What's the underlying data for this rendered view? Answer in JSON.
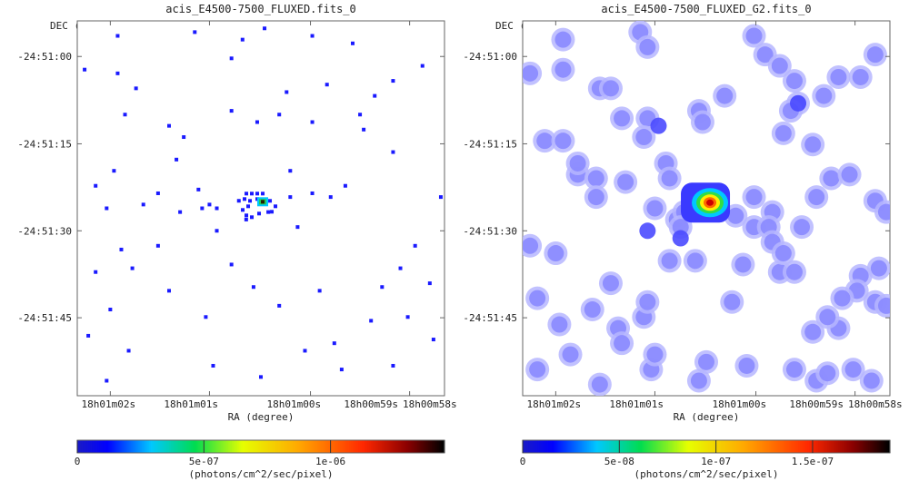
{
  "chart_data": [
    {
      "type": "heatmap",
      "title": "acis_E4500-7500_FLUXED.fits_0",
      "xlabel": "RA (degree)",
      "ylabel": "DEC (degree)",
      "x_ticks": [
        "18h01m02s",
        "18h01m01s",
        "18h01m00s",
        "18h00m59s",
        "18h00m58s"
      ],
      "y_ticks": [
        "-24:51:00",
        "-24:51:15",
        "-24:51:30",
        "-24:51:45"
      ],
      "colorbar": {
        "label": "(photons/cm^2/sec/pixel)",
        "ticks": [
          "0",
          "5e-07",
          "1e-06"
        ],
        "tick_values": [
          0,
          5e-07,
          1e-06
        ],
        "range": [
          0,
          1.45e-06
        ],
        "colormap": "rainbow"
      },
      "bright_source": {
        "ra_frac": 0.505,
        "dec_frac": 0.485
      },
      "events": [
        [
          0.02,
          0.13
        ],
        [
          0.11,
          0.04
        ],
        [
          0.11,
          0.14
        ],
        [
          0.16,
          0.18
        ],
        [
          0.32,
          0.03
        ],
        [
          0.51,
          0.02
        ],
        [
          0.64,
          0.04
        ],
        [
          0.75,
          0.06
        ],
        [
          0.42,
          0.24
        ],
        [
          0.49,
          0.27
        ],
        [
          0.55,
          0.25
        ],
        [
          0.22,
          0.46
        ],
        [
          0.28,
          0.51
        ],
        [
          0.34,
          0.5
        ],
        [
          0.36,
          0.49
        ],
        [
          0.38,
          0.5
        ],
        [
          0.44,
          0.48
        ],
        [
          0.46,
          0.53
        ],
        [
          0.52,
          0.51
        ],
        [
          0.58,
          0.47
        ],
        [
          0.64,
          0.46
        ],
        [
          0.69,
          0.47
        ],
        [
          0.73,
          0.44
        ],
        [
          0.05,
          0.44
        ],
        [
          0.1,
          0.4
        ],
        [
          0.05,
          0.67
        ],
        [
          0.03,
          0.84
        ],
        [
          0.08,
          0.96
        ],
        [
          0.14,
          0.88
        ],
        [
          0.25,
          0.72
        ],
        [
          0.35,
          0.79
        ],
        [
          0.37,
          0.92
        ],
        [
          0.5,
          0.95
        ],
        [
          0.62,
          0.88
        ],
        [
          0.72,
          0.93
        ],
        [
          0.86,
          0.92
        ],
        [
          0.9,
          0.79
        ],
        [
          0.92,
          0.6
        ],
        [
          0.96,
          0.7
        ],
        [
          0.99,
          0.47
        ],
        [
          0.94,
          0.12
        ],
        [
          0.86,
          0.16
        ],
        [
          0.78,
          0.29
        ],
        [
          0.81,
          0.2
        ],
        [
          0.77,
          0.25
        ],
        [
          0.42,
          0.1
        ],
        [
          0.57,
          0.19
        ],
        [
          0.64,
          0.27
        ],
        [
          0.29,
          0.31
        ],
        [
          0.12,
          0.61
        ],
        [
          0.09,
          0.77
        ],
        [
          0.22,
          0.6
        ],
        [
          0.42,
          0.65
        ],
        [
          0.48,
          0.71
        ],
        [
          0.55,
          0.76
        ],
        [
          0.66,
          0.72
        ],
        [
          0.7,
          0.86
        ],
        [
          0.8,
          0.8
        ],
        [
          0.83,
          0.71
        ],
        [
          0.88,
          0.66
        ],
        [
          0.6,
          0.55
        ],
        [
          0.58,
          0.4
        ],
        [
          0.33,
          0.45
        ],
        [
          0.38,
          0.56
        ],
        [
          0.18,
          0.49
        ],
        [
          0.25,
          0.28
        ],
        [
          0.27,
          0.37
        ],
        [
          0.13,
          0.25
        ],
        [
          0.08,
          0.5
        ],
        [
          0.15,
          0.66
        ],
        [
          0.45,
          0.05
        ],
        [
          0.86,
          0.35
        ],
        [
          0.68,
          0.17
        ],
        [
          0.97,
          0.85
        ]
      ]
    },
    {
      "type": "heatmap",
      "title": "acis_E4500-7500_FLUXED_G2.fits_0",
      "xlabel": "RA (degree)",
      "ylabel": "DEC (degree)",
      "x_ticks": [
        "18h01m02s",
        "18h01m01s",
        "18h01m00s",
        "18h00m59s",
        "18h00m58s"
      ],
      "y_ticks": [
        "-24:51:00",
        "-24:51:15",
        "-24:51:30",
        "-24:51:45"
      ],
      "colorbar": {
        "label": "(photons/cm^2/sec/pixel)",
        "ticks": [
          "0",
          "5e-08",
          "1e-07",
          "1.5e-07"
        ],
        "tick_values": [
          0,
          5e-08,
          1e-07,
          1.5e-07
        ],
        "range": [
          0,
          1.9e-07
        ],
        "colormap": "rainbow"
      },
      "bright_source": {
        "ra_frac": 0.51,
        "dec_frac": 0.485
      },
      "blobs": [
        [
          0.11,
          0.05
        ],
        [
          0.32,
          0.03
        ],
        [
          0.34,
          0.07
        ],
        [
          0.02,
          0.14
        ],
        [
          0.11,
          0.13
        ],
        [
          0.21,
          0.18
        ],
        [
          0.24,
          0.18
        ],
        [
          0.27,
          0.26
        ],
        [
          0.34,
          0.26
        ],
        [
          0.33,
          0.31
        ],
        [
          0.48,
          0.24
        ],
        [
          0.49,
          0.27
        ],
        [
          0.55,
          0.2
        ],
        [
          0.63,
          0.04
        ],
        [
          0.66,
          0.09
        ],
        [
          0.7,
          0.12
        ],
        [
          0.74,
          0.16
        ],
        [
          0.75,
          0.22
        ],
        [
          0.73,
          0.24
        ],
        [
          0.82,
          0.2
        ],
        [
          0.86,
          0.15
        ],
        [
          0.92,
          0.15
        ],
        [
          0.96,
          0.09
        ],
        [
          0.71,
          0.3
        ],
        [
          0.79,
          0.33
        ],
        [
          0.06,
          0.32
        ],
        [
          0.11,
          0.32
        ],
        [
          0.15,
          0.41
        ],
        [
          0.15,
          0.38
        ],
        [
          0.2,
          0.42
        ],
        [
          0.2,
          0.47
        ],
        [
          0.28,
          0.43
        ],
        [
          0.39,
          0.38
        ],
        [
          0.4,
          0.42
        ],
        [
          0.36,
          0.5
        ],
        [
          0.42,
          0.53
        ],
        [
          0.44,
          0.51
        ],
        [
          0.43,
          0.55
        ],
        [
          0.58,
          0.52
        ],
        [
          0.63,
          0.55
        ],
        [
          0.63,
          0.47
        ],
        [
          0.68,
          0.51
        ],
        [
          0.67,
          0.55
        ],
        [
          0.68,
          0.59
        ],
        [
          0.7,
          0.67
        ],
        [
          0.76,
          0.55
        ],
        [
          0.8,
          0.47
        ],
        [
          0.84,
          0.42
        ],
        [
          0.89,
          0.41
        ],
        [
          0.96,
          0.48
        ],
        [
          0.99,
          0.51
        ],
        [
          0.97,
          0.66
        ],
        [
          0.92,
          0.68
        ],
        [
          0.91,
          0.72
        ],
        [
          0.87,
          0.74
        ],
        [
          0.86,
          0.82
        ],
        [
          0.96,
          0.75
        ],
        [
          0.99,
          0.76
        ],
        [
          0.02,
          0.6
        ],
        [
          0.04,
          0.74
        ],
        [
          0.09,
          0.62
        ],
        [
          0.1,
          0.81
        ],
        [
          0.13,
          0.89
        ],
        [
          0.19,
          0.77
        ],
        [
          0.24,
          0.7
        ],
        [
          0.26,
          0.82
        ],
        [
          0.27,
          0.86
        ],
        [
          0.33,
          0.79
        ],
        [
          0.34,
          0.75
        ],
        [
          0.35,
          0.93
        ],
        [
          0.36,
          0.89
        ],
        [
          0.04,
          0.93
        ],
        [
          0.21,
          0.97
        ],
        [
          0.48,
          0.96
        ],
        [
          0.5,
          0.91
        ],
        [
          0.61,
          0.92
        ],
        [
          0.74,
          0.93
        ],
        [
          0.8,
          0.96
        ],
        [
          0.83,
          0.94
        ],
        [
          0.9,
          0.93
        ],
        [
          0.95,
          0.96
        ],
        [
          0.4,
          0.64
        ],
        [
          0.47,
          0.64
        ],
        [
          0.6,
          0.65
        ],
        [
          0.74,
          0.67
        ],
        [
          0.71,
          0.62
        ],
        [
          0.57,
          0.75
        ],
        [
          0.79,
          0.83
        ],
        [
          0.83,
          0.79
        ]
      ]
    }
  ]
}
